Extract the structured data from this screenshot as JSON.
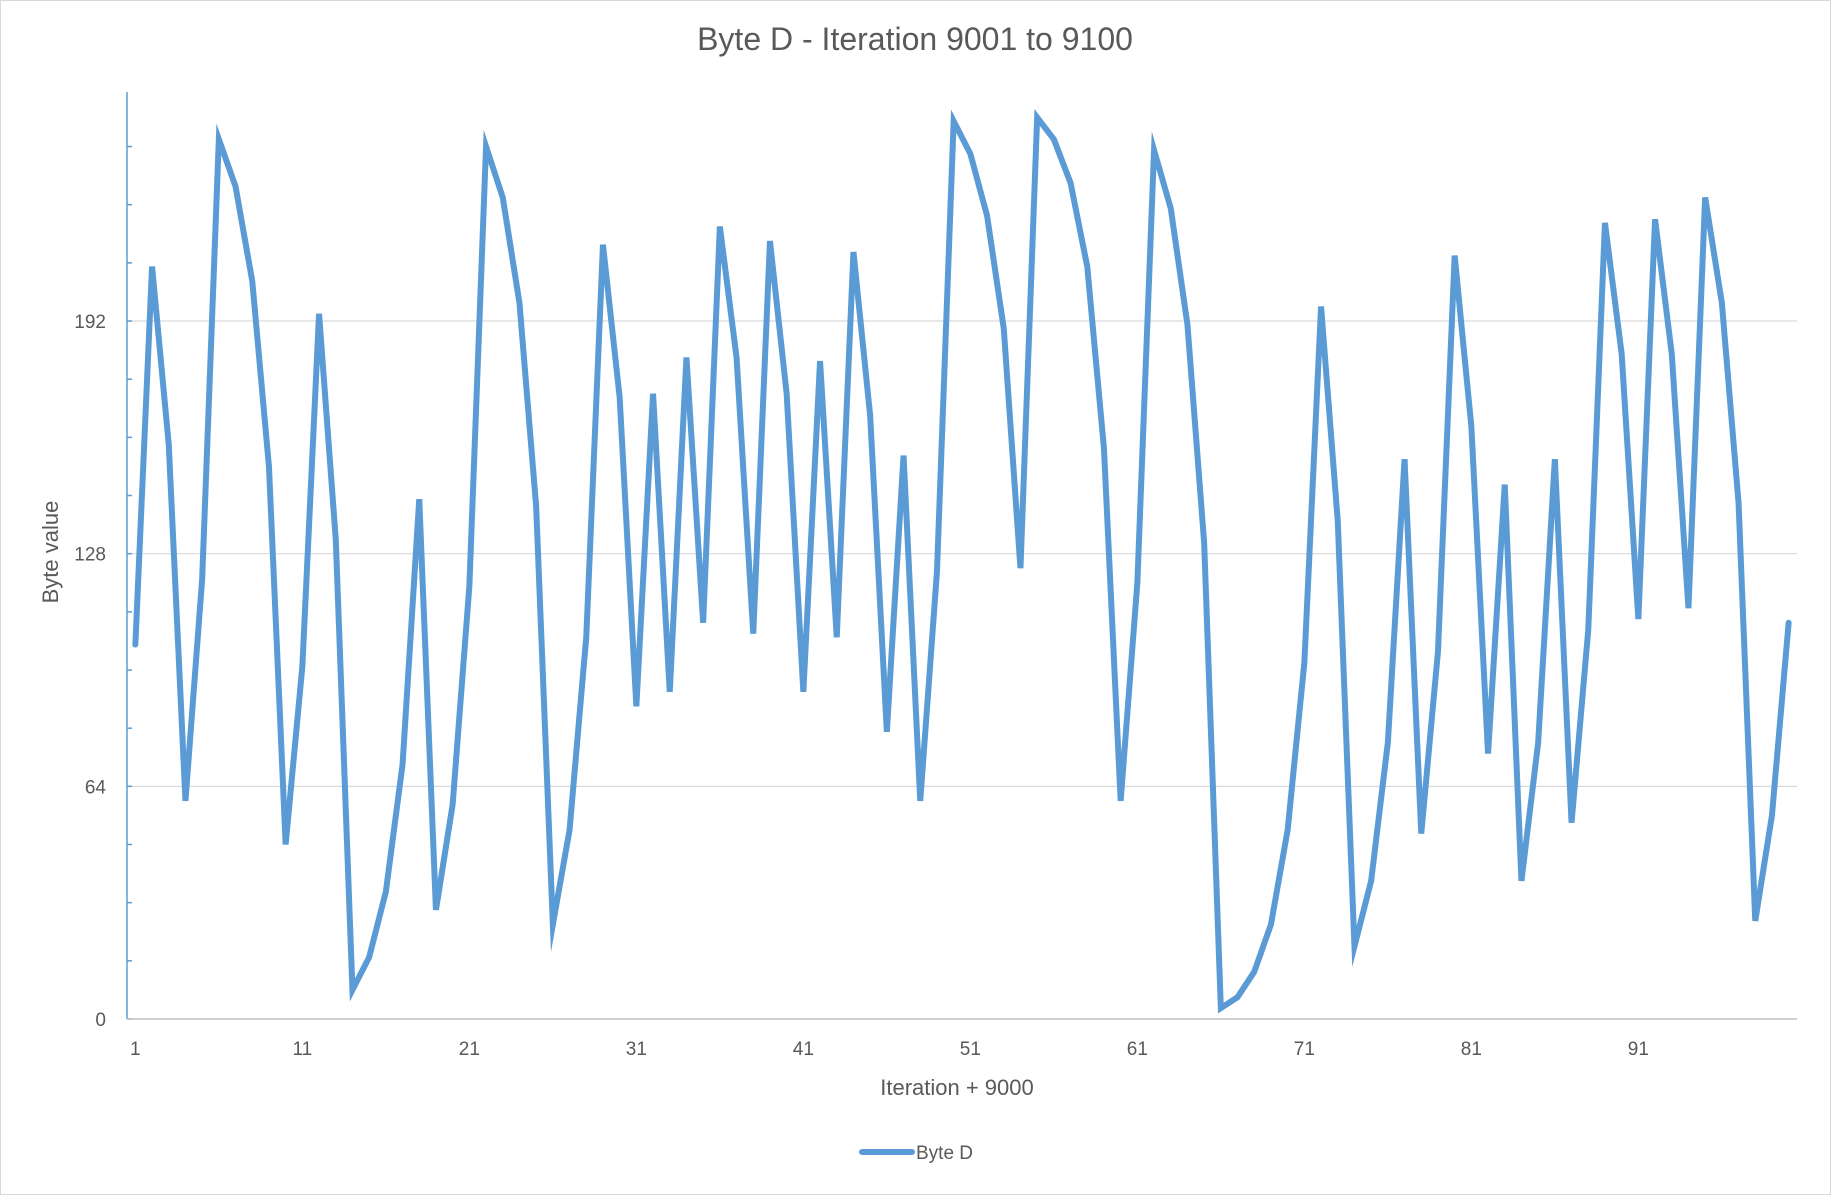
{
  "chart_data": {
    "type": "line",
    "title": "Byte D - Iteration 9001 to 9100",
    "xlabel": "Iteration + 9000",
    "ylabel": "Byte value",
    "x_tick_labels": [
      "1",
      "11",
      "21",
      "31",
      "41",
      "51",
      "61",
      "71",
      "81",
      "91"
    ],
    "x_tick_values": [
      1,
      11,
      21,
      31,
      41,
      51,
      61,
      71,
      81,
      91
    ],
    "y_tick_labels": [
      "0",
      "64",
      "128",
      "192"
    ],
    "y_tick_values": [
      0,
      64,
      128,
      192
    ],
    "xlim": [
      0.5,
      100.5
    ],
    "ylim": [
      0,
      255
    ],
    "grid": "horizontal major gridlines",
    "legend_position": "bottom",
    "series_color": "#5B9BD5",
    "gridline_color": "#D9D9D9",
    "axis_color": "#5B9BD5",
    "series": [
      {
        "name": "Byte D",
        "x": [
          1,
          2,
          3,
          4,
          5,
          6,
          7,
          8,
          9,
          10,
          11,
          12,
          13,
          14,
          15,
          16,
          17,
          18,
          19,
          20,
          21,
          22,
          23,
          24,
          25,
          26,
          27,
          28,
          29,
          30,
          31,
          32,
          33,
          34,
          35,
          36,
          37,
          38,
          39,
          40,
          41,
          42,
          43,
          44,
          45,
          46,
          47,
          48,
          49,
          50,
          51,
          52,
          53,
          54,
          55,
          56,
          57,
          58,
          59,
          60,
          61,
          62,
          63,
          64,
          65,
          66,
          67,
          68,
          69,
          70,
          71,
          72,
          73,
          74,
          75,
          76,
          77,
          78,
          79,
          80,
          81,
          82,
          83,
          84,
          85,
          86,
          87,
          88,
          89,
          90,
          91,
          92,
          93,
          94,
          95,
          96,
          97,
          98,
          99,
          100
        ],
        "values": [
          103,
          207,
          158,
          60,
          121,
          242,
          229,
          203,
          152,
          48,
          97,
          194,
          132,
          8,
          17,
          35,
          70,
          143,
          30,
          59,
          119,
          240,
          226,
          197,
          141,
          26,
          52,
          105,
          213,
          171,
          86,
          172,
          90,
          182,
          109,
          218,
          182,
          106,
          214,
          172,
          90,
          181,
          105,
          211,
          166,
          79,
          155,
          60,
          123,
          247,
          238,
          221,
          190,
          124,
          248,
          242,
          230,
          207,
          157,
          60,
          120,
          239,
          223,
          191,
          131,
          3,
          6,
          13,
          26,
          52,
          98,
          196,
          137,
          20,
          38,
          76,
          154,
          51,
          101,
          210,
          163,
          73,
          147,
          38,
          76,
          154,
          54,
          107,
          219,
          183,
          110,
          220,
          183,
          113,
          226,
          197,
          142,
          27,
          56,
          109
        ]
      }
    ]
  }
}
